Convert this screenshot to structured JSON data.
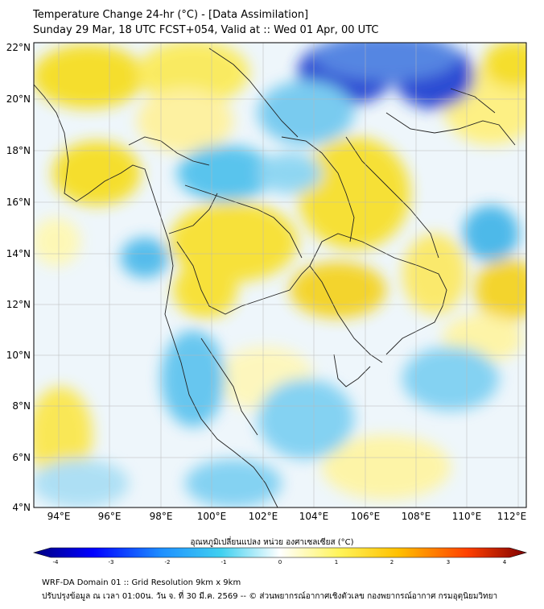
{
  "header": {
    "title_line1": "Temperature Change 24-hr (°C) - [Data Assimilation]",
    "title_line2": "Sunday 29 Mar, 18 UTC FCST+054, Valid at :: Wed 01 Apr, 00 UTC"
  },
  "map": {
    "lat_labels": [
      "22°N",
      "20°N",
      "18°N",
      "16°N",
      "14°N",
      "12°N",
      "10°N",
      "8°N",
      "6°N",
      "4°N"
    ],
    "lon_labels": [
      "94°E",
      "96°E",
      "98°E",
      "100°E",
      "102°E",
      "104°E",
      "106°E",
      "108°E",
      "110°E",
      "112°E"
    ],
    "lat_range": [
      4,
      22
    ],
    "lon_range": [
      93,
      112.3
    ],
    "ocean_base_color": "#ffffff",
    "warm_color": "#f4e020",
    "cool_color": "#38b6e8",
    "strong_cool_color": "#1530c8",
    "coastline_color": "#222222",
    "grid_color": "#b8b8b8"
  },
  "colorbar": {
    "label": "อุณหภูมิเปลี่ยนแปลง หน่วย องศาเซลเซียส (°C)",
    "ticks": [
      "-4",
      "-3",
      "-2",
      "-1",
      "0",
      "1",
      "2",
      "3",
      "4"
    ],
    "range": [
      -4,
      4
    ],
    "colors": [
      "#00007f",
      "#0000ff",
      "#1e90ff",
      "#40d0f0",
      "#ffffff",
      "#fff45a",
      "#ffc000",
      "#ff4000",
      "#7f0000"
    ]
  },
  "footer": {
    "line1": "WRF-DA Domain 01 :: Grid Resolution 9km x 9km",
    "line2": "ปรับปรุงข้อมูล ณ เวลา 01:00น. วัน จ. ที่ 30 มี.ค. 2569 -- © ส่วนพยากรณ์อากาศเชิงตัวเลข กองพยากรณ์อากาศ กรมอุตุนิยมวิทยา"
  }
}
